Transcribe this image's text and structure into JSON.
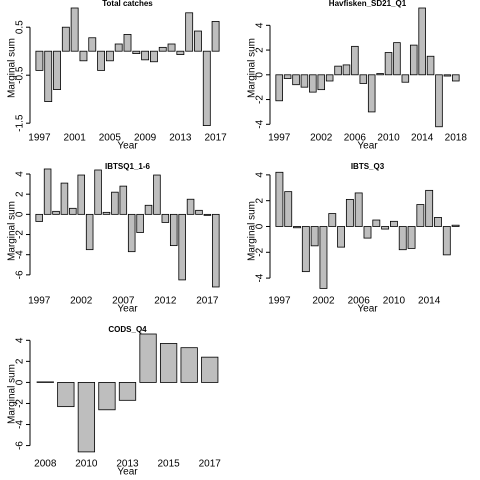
{
  "chart_data": [
    {
      "type": "bar",
      "title": "Total catches",
      "xlabel": "Year",
      "ylabel": "Marginal sum",
      "color": "#bebebe",
      "categories": [
        "1997",
        null,
        null,
        null,
        "2001",
        null,
        null,
        null,
        "2005",
        null,
        null,
        null,
        "2009",
        null,
        null,
        null,
        "2013",
        null,
        null,
        null,
        "2017"
      ],
      "values": [
        -0.4,
        -1.05,
        -0.8,
        0.5,
        0.9,
        -0.2,
        0.28,
        -0.4,
        -0.2,
        0.15,
        0.35,
        -0.05,
        -0.18,
        -0.22,
        0.08,
        0.15,
        -0.07,
        0.8,
        0.42,
        -1.55,
        0.62
      ],
      "ylim": [
        -1.6,
        0.9
      ],
      "yticks": [
        -1.5,
        -0.5,
        0.5
      ]
    },
    {
      "type": "bar",
      "title": "Havfisken_SD21_Q1",
      "xlabel": "Year",
      "ylabel": "Marginal sum",
      "color": "#bebebe",
      "categories": [
        "1997",
        null,
        null,
        null,
        null,
        "2002",
        null,
        null,
        null,
        "2006",
        null,
        null,
        null,
        "2010",
        null,
        null,
        null,
        "2014",
        null,
        null,
        null,
        "2018"
      ],
      "values": [
        -2.1,
        -0.3,
        -0.8,
        -1.0,
        -1.4,
        -1.2,
        -0.5,
        0.7,
        0.8,
        2.3,
        -0.7,
        -3.0,
        0.1,
        1.8,
        2.6,
        -0.6,
        2.4,
        5.4,
        1.5,
        -4.2,
        -0.1,
        -0.5
      ],
      "ylim": [
        -4.3,
        5.4
      ],
      "yticks": [
        -4,
        -2,
        0,
        2,
        4
      ]
    },
    {
      "type": "bar",
      "title": "IBTSQ1_1-6",
      "xlabel": "Year",
      "ylabel": "Marginal sum",
      "color": "#bebebe",
      "categories": [
        "1997",
        null,
        null,
        null,
        null,
        "2002",
        null,
        null,
        null,
        null,
        "2007",
        null,
        null,
        null,
        null,
        "2012",
        null,
        null,
        null,
        null,
        "2017",
        null
      ],
      "values": [
        -0.7,
        4.5,
        0.3,
        3.1,
        0.6,
        3.9,
        -3.5,
        4.4,
        0.2,
        2.2,
        2.8,
        -3.7,
        -1.8,
        0.9,
        3.9,
        -0.8,
        -3.1,
        -6.5,
        1.5,
        0.4,
        -0.1,
        -7.2
      ],
      "ylim": [
        -7.6,
        4.3
      ],
      "yticks": [
        -6,
        -4,
        -2,
        0,
        2,
        4
      ]
    },
    {
      "type": "bar",
      "title": "IBTS_Q3",
      "xlabel": "Year",
      "ylabel": "Marginal sum",
      "color": "#bebebe",
      "categories": [
        "1997",
        null,
        null,
        null,
        null,
        "2002",
        null,
        null,
        null,
        "2006",
        null,
        null,
        null,
        "2010",
        null,
        null,
        null,
        "2014",
        null,
        null,
        null
      ],
      "values": [
        4.2,
        2.7,
        -0.1,
        -3.5,
        -1.5,
        -4.8,
        1.0,
        -1.6,
        2.1,
        2.6,
        -0.9,
        0.5,
        -0.2,
        0.4,
        -1.8,
        -1.7,
        1.7,
        2.8,
        0.7,
        -2.2,
        0.1
      ],
      "ylim": [
        -5.0,
        4.3
      ],
      "yticks": [
        -4,
        -2,
        0,
        2,
        4
      ]
    },
    {
      "type": "bar",
      "title": "CODS_Q4",
      "xlabel": "Year",
      "ylabel": "Marginal sum",
      "color": "#bebebe",
      "categories": [
        "2008",
        null,
        "2010",
        null,
        "2013",
        null,
        "2015",
        null,
        "2017"
      ],
      "values": [
        0.05,
        -2.3,
        -6.6,
        -2.6,
        -1.7,
        4.6,
        3.7,
        3.3,
        2.4
      ],
      "ylim": [
        -6.8,
        4.6
      ],
      "yticks": [
        -6,
        -4,
        -2,
        0,
        2,
        4
      ]
    }
  ]
}
